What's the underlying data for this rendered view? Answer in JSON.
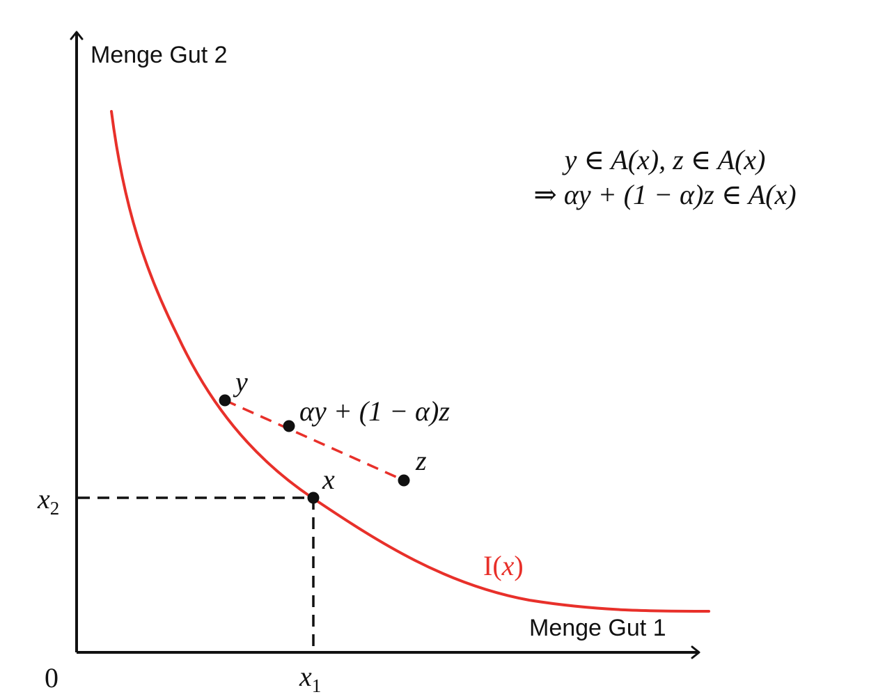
{
  "colors": {
    "curve": "#e8302a",
    "ink": "#111111",
    "background": "#ffffff"
  },
  "axes": {
    "y_label": "Menge Gut 2",
    "x_label": "Menge Gut 1",
    "origin": "0"
  },
  "ticks": {
    "x1_base": "x",
    "x1_sub": "1",
    "x2_base": "x",
    "x2_sub": "2"
  },
  "curve": {
    "label_prefix": "I(",
    "label_var": "x",
    "label_suffix": ")"
  },
  "points": {
    "y": "y",
    "z": "z",
    "x": "x",
    "combo": "αy + (1 − α)z"
  },
  "formula": {
    "line1": "y ∈ A(x), z ∈ A(x)",
    "line2": "⇒ αy + (1 − α)z ∈ A(x)"
  }
}
